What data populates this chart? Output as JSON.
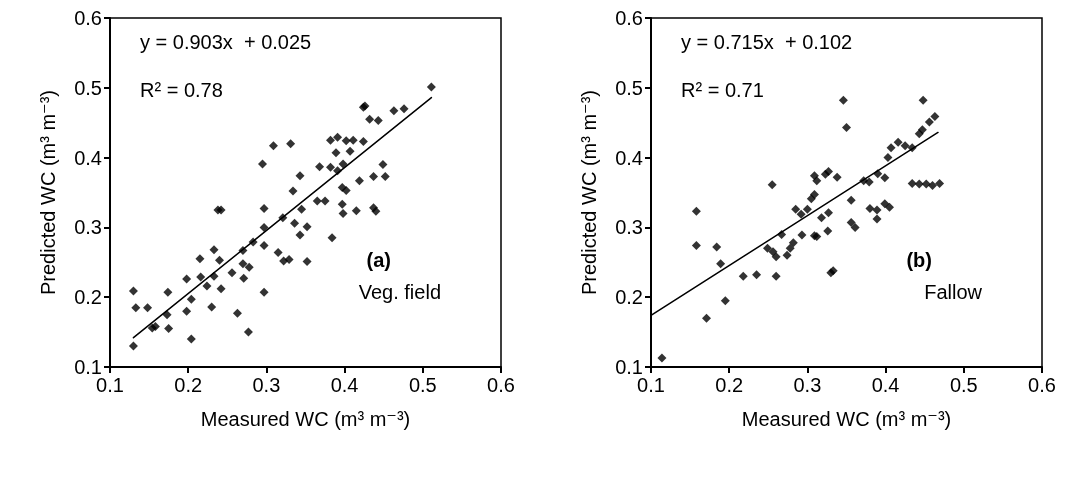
{
  "chart_data": [
    {
      "type": "scatter",
      "xlabel": "Measured WC (m³ m⁻³)",
      "ylabel": "Predicted WC (m³ m⁻³)",
      "annotations": [
        "y = 0.903x  + 0.025",
        "R² = 0.78",
        "(a)",
        "Veg. field"
      ],
      "xlim": [
        0.1,
        0.6
      ],
      "ylim": [
        0.1,
        0.6
      ],
      "xticks": [
        0.1,
        0.2,
        0.3,
        0.4,
        0.5,
        0.6
      ],
      "yticks": [
        0.1,
        0.2,
        0.3,
        0.4,
        0.5,
        0.6
      ],
      "grid": false,
      "series": [
        {
          "marker": "diamond",
          "color": "#000000",
          "x": [
            0.13,
            0.13,
            0.133,
            0.148,
            0.154,
            0.158,
            0.174,
            0.173,
            0.175,
            0.198,
            0.198,
            0.204,
            0.204,
            0.215,
            0.216,
            0.224,
            0.23,
            0.233,
            0.233,
            0.238,
            0.242,
            0.24,
            0.242,
            0.256,
            0.263,
            0.27,
            0.271,
            0.277,
            0.278,
            0.27,
            0.283,
            0.295,
            0.297,
            0.297,
            0.297,
            0.297,
            0.309,
            0.315,
            0.321,
            0.322,
            0.329,
            0.331,
            0.334,
            0.336,
            0.343,
            0.343,
            0.345,
            0.511,
            0.424,
            0.426,
            0.476,
            0.463,
            0.432,
            0.443,
            0.382,
            0.391,
            0.402,
            0.411,
            0.424,
            0.389,
            0.407,
            0.368,
            0.382,
            0.391,
            0.398,
            0.449,
            0.437,
            0.452,
            0.419,
            0.397,
            0.402,
            0.365,
            0.375,
            0.397,
            0.398,
            0.415,
            0.437,
            0.44,
            0.352,
            0.384,
            0.352
          ],
          "values": [
            0.13,
            0.209,
            0.185,
            0.185,
            0.156,
            0.158,
            0.207,
            0.175,
            0.155,
            0.226,
            0.18,
            0.197,
            0.14,
            0.255,
            0.229,
            0.216,
            0.186,
            0.268,
            0.23,
            0.325,
            0.325,
            0.253,
            0.212,
            0.235,
            0.177,
            0.248,
            0.227,
            0.15,
            0.243,
            0.267,
            0.279,
            0.391,
            0.207,
            0.327,
            0.274,
            0.3,
            0.417,
            0.264,
            0.314,
            0.252,
            0.254,
            0.42,
            0.352,
            0.306,
            0.374,
            0.289,
            0.326,
            0.501,
            0.472,
            0.474,
            0.47,
            0.467,
            0.455,
            0.453,
            0.425,
            0.429,
            0.424,
            0.425,
            0.423,
            0.407,
            0.409,
            0.387,
            0.386,
            0.381,
            0.391,
            0.39,
            0.373,
            0.373,
            0.367,
            0.357,
            0.353,
            0.338,
            0.338,
            0.333,
            0.32,
            0.324,
            0.328,
            0.323,
            0.301,
            0.285,
            0.251
          ]
        },
        {
          "type": "line",
          "marker": "none",
          "line_style": "solid",
          "color": "#000000",
          "x": [
            0.13,
            0.511
          ],
          "values": [
            0.142,
            0.486
          ]
        }
      ]
    },
    {
      "type": "scatter",
      "xlabel": "Measured WC (m³ m⁻³)",
      "ylabel": "Predicted WC (m³ m⁻³)",
      "annotations": [
        "y = 0.715x  + 0.102",
        "R² = 0.71",
        "(b)",
        "Fallow"
      ],
      "xlim": [
        0.1,
        0.6
      ],
      "ylim": [
        0.1,
        0.6
      ],
      "xticks": [
        0.1,
        0.2,
        0.3,
        0.4,
        0.5,
        0.6
      ],
      "yticks": [
        0.1,
        0.2,
        0.3,
        0.4,
        0.5,
        0.6
      ],
      "grid": false,
      "series": [
        {
          "marker": "diamond",
          "color": "#000000",
          "x": [
            0.114,
            0.158,
            0.158,
            0.171,
            0.184,
            0.189,
            0.195,
            0.218,
            0.235,
            0.255,
            0.249,
            0.256,
            0.26,
            0.26,
            0.267,
            0.274,
            0.278,
            0.282,
            0.285,
            0.292,
            0.3,
            0.293,
            0.309,
            0.305,
            0.309,
            0.309,
            0.346,
            0.35,
            0.448,
            0.463,
            0.456,
            0.447,
            0.443,
            0.416,
            0.425,
            0.434,
            0.407,
            0.403,
            0.39,
            0.399,
            0.372,
            0.379,
            0.356,
            0.434,
            0.443,
            0.452,
            0.46,
            0.469,
            0.327,
            0.323,
            0.312,
            0.338,
            0.327,
            0.318,
            0.356,
            0.361,
            0.312,
            0.326,
            0.33,
            0.333,
            0.38,
            0.389,
            0.399,
            0.405,
            0.389
          ],
          "values": [
            0.113,
            0.323,
            0.274,
            0.17,
            0.272,
            0.248,
            0.195,
            0.23,
            0.232,
            0.361,
            0.27,
            0.265,
            0.258,
            0.23,
            0.29,
            0.26,
            0.27,
            0.278,
            0.326,
            0.319,
            0.326,
            0.289,
            0.288,
            0.341,
            0.347,
            0.374,
            0.482,
            0.443,
            0.482,
            0.459,
            0.451,
            0.44,
            0.434,
            0.422,
            0.417,
            0.414,
            0.414,
            0.4,
            0.377,
            0.371,
            0.367,
            0.365,
            0.339,
            0.363,
            0.362,
            0.362,
            0.36,
            0.363,
            0.38,
            0.376,
            0.367,
            0.372,
            0.321,
            0.314,
            0.307,
            0.3,
            0.287,
            0.295,
            0.235,
            0.238,
            0.327,
            0.325,
            0.334,
            0.329,
            0.312
          ]
        },
        {
          "type": "line",
          "marker": "none",
          "line_style": "solid",
          "color": "#000000",
          "x": [
            0.1,
            0.467
          ],
          "values": [
            0.174,
            0.436
          ]
        }
      ]
    }
  ]
}
